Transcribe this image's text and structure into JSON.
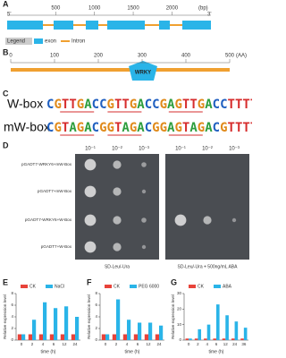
{
  "panel_a": {
    "label": "A",
    "five_prime": "5'",
    "three_prime": "3'",
    "ticks": [
      500,
      1000,
      1500,
      2000
    ],
    "unit": "(bp)",
    "legend": {
      "title": "Legend",
      "exon": "exon",
      "intron": "Intron"
    }
  },
  "panel_b": {
    "label": "B",
    "ticks": [
      0,
      100,
      200,
      300,
      400,
      500
    ],
    "unit": "(AA)",
    "domain": "WRKY"
  },
  "panel_c": {
    "label": "C",
    "rows": [
      {
        "name": "W-box",
        "sequence": "CGTTGACCGTTGACCGAGTTGACCTTTTA"
      },
      {
        "name": "mW-box",
        "sequence": "CGTAGACGGTAGACGGAGTAGACGTTTTA"
      }
    ]
  },
  "panel_d": {
    "label": "D",
    "dilutions": [
      "10⁻¹",
      "10⁻²",
      "10⁻³"
    ],
    "rows": [
      "pGADT7-WRKY6+mW-Box",
      "pGADT7+mW-Box",
      "pGADT7-WRKY6+W-Box",
      "pGADT7+W-Box"
    ],
    "conditions": [
      "SD-Leu/-Ura",
      "SD-Leu/-Ura + 500ng/mL ABA"
    ]
  },
  "chart_data": [
    {
      "type": "bar",
      "panel": "E",
      "categories": [
        "0",
        "2",
        "4",
        "6",
        "12",
        "24"
      ],
      "series": [
        {
          "name": "CK",
          "color": "#e8433a",
          "values": [
            1,
            1,
            1,
            1,
            1,
            1
          ]
        },
        {
          "name": "NaCl",
          "color": "#2ab4e8",
          "values": [
            1,
            3.5,
            6.5,
            5.5,
            5.8,
            4
          ]
        }
      ],
      "ylim": [
        0,
        8
      ],
      "yticks": [
        0,
        2,
        4,
        6,
        8
      ],
      "x_label": "time (h)",
      "y_label": "Relative expression level"
    },
    {
      "type": "bar",
      "panel": "F",
      "categories": [
        "0",
        "2",
        "4",
        "6",
        "12",
        "24"
      ],
      "series": [
        {
          "name": "CK",
          "color": "#e8433a",
          "values": [
            1,
            1,
            1,
            1,
            1,
            1
          ]
        },
        {
          "name": "PEG 6000",
          "color": "#2ab4e8",
          "values": [
            1,
            7,
            3.5,
            3,
            3,
            2.5
          ]
        }
      ],
      "ylim": [
        0,
        8
      ],
      "yticks": [
        0,
        2,
        4,
        6,
        8
      ],
      "x_label": "time (h)",
      "y_label": "Relative expression level"
    },
    {
      "type": "bar",
      "panel": "G",
      "categories": [
        "0",
        "2",
        "4",
        "6",
        "12",
        "24",
        "36"
      ],
      "series": [
        {
          "name": "CK",
          "color": "#e8433a",
          "values": [
            1,
            1,
            1,
            1,
            1,
            1,
            1
          ]
        },
        {
          "name": "ABA",
          "color": "#2ab4e8",
          "values": [
            1,
            7,
            10,
            23,
            16,
            12,
            8
          ]
        }
      ],
      "ylim": [
        0,
        30
      ],
      "yticks": [
        0,
        10,
        20,
        30
      ],
      "x_label": "time (h)",
      "y_label": "Relative expression level"
    }
  ]
}
